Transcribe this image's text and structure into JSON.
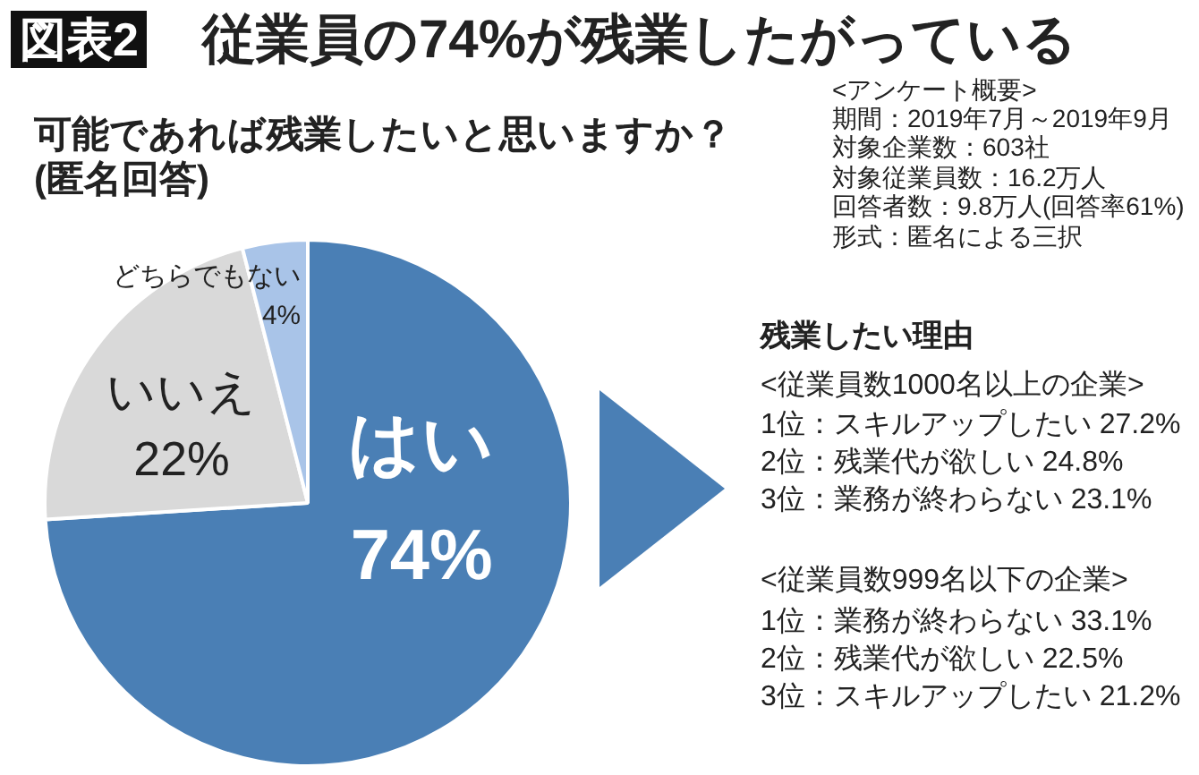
{
  "chart_data": {
    "type": "pie",
    "title": "従業員の74%が残業したがっている",
    "subtitle": "可能であれば残業したいと思いますか？\n(匿名回答)",
    "categories": [
      "はい",
      "いいえ",
      "どちらでもない"
    ],
    "values": [
      74,
      22,
      4
    ],
    "value_labels": [
      "74%",
      "22%",
      "4%"
    ],
    "colors": [
      "#4a7fb5",
      "#d9d9d9",
      "#a9c4e8"
    ],
    "annotations": [
      "図表2",
      "<アンケート概要>",
      "期間：2019年7月～2019年9月",
      "対象企業数：603社",
      "対象従業員数：16.2万人",
      "回答者数：9.8万人(回答率61%)",
      "形式：匿名による三択",
      "残業したい理由",
      "<従業員数1000名以上の企業>",
      "1位：スキルアップしたい 27.2%",
      "2位：残業代が欲しい 24.8%",
      "3位：業務が終わらない 23.1%",
      "<従業員数999名以下の企業>",
      "1位：業務が終わらない 33.1%",
      "2位：残業代が欲しい 22.5%",
      "3位：スキルアップしたい 21.2%"
    ]
  }
}
